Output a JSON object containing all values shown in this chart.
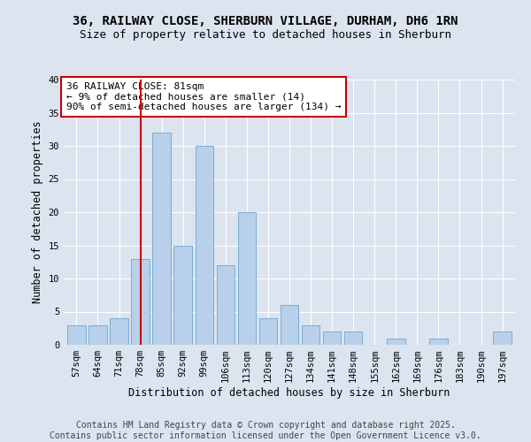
{
  "title_line1": "36, RAILWAY CLOSE, SHERBURN VILLAGE, DURHAM, DH6 1RN",
  "title_line2": "Size of property relative to detached houses in Sherburn",
  "xlabel": "Distribution of detached houses by size in Sherburn",
  "ylabel": "Number of detached properties",
  "categories": [
    "57sqm",
    "64sqm",
    "71sqm",
    "78sqm",
    "85sqm",
    "92sqm",
    "99sqm",
    "106sqm",
    "113sqm",
    "120sqm",
    "127sqm",
    "134sqm",
    "141sqm",
    "148sqm",
    "155sqm",
    "162sqm",
    "169sqm",
    "176sqm",
    "183sqm",
    "190sqm",
    "197sqm"
  ],
  "values": [
    3,
    3,
    4,
    13,
    32,
    15,
    30,
    12,
    20,
    4,
    6,
    3,
    2,
    2,
    0,
    1,
    0,
    1,
    0,
    0,
    2
  ],
  "bar_color": "#b8d0ea",
  "bar_edge_color": "#7aadd4",
  "vline_x": 3.0,
  "vline_color": "#cc0000",
  "annotation_text": "36 RAILWAY CLOSE: 81sqm\n← 9% of detached houses are smaller (14)\n90% of semi-detached houses are larger (134) →",
  "annotation_box_color": "#ffffff",
  "annotation_box_edge": "#cc0000",
  "ylim": [
    0,
    40
  ],
  "yticks": [
    0,
    5,
    10,
    15,
    20,
    25,
    30,
    35,
    40
  ],
  "background_color": "#dce4f0",
  "footer_text": "Contains HM Land Registry data © Crown copyright and database right 2025.\nContains public sector information licensed under the Open Government Licence v3.0.",
  "title_fontsize": 10,
  "subtitle_fontsize": 9,
  "axis_label_fontsize": 8.5,
  "tick_fontsize": 7.5,
  "annotation_fontsize": 8,
  "footer_fontsize": 7
}
